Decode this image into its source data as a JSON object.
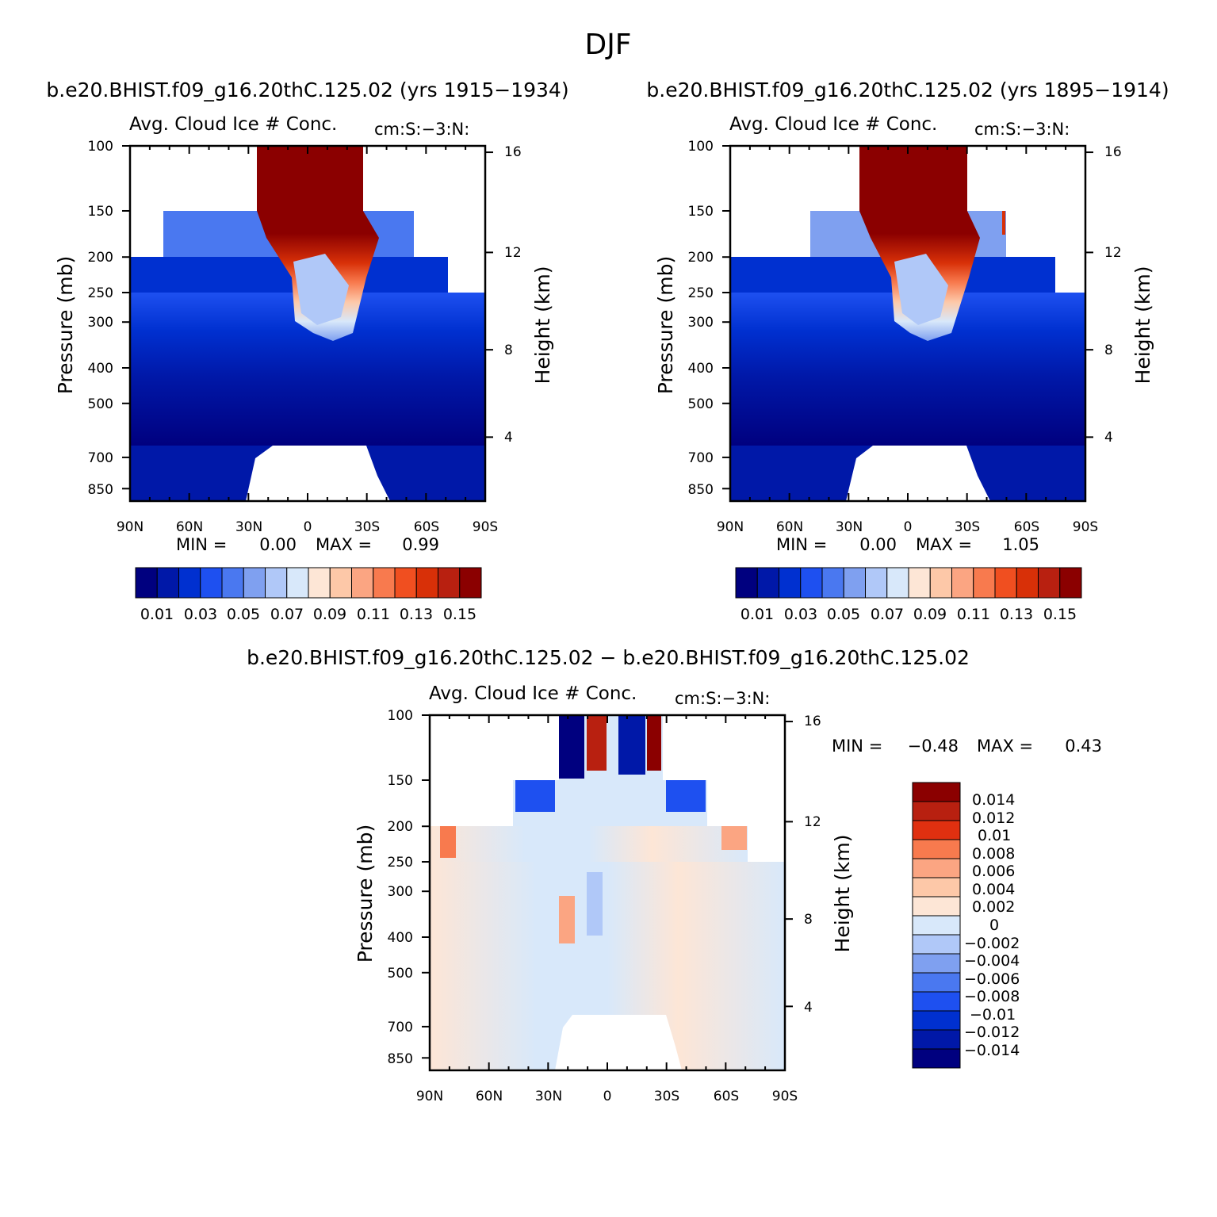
{
  "page_title": "DJF",
  "chart_data": [
    {
      "type": "heatmap",
      "subtitle": "b.e20.BHIST.f09_g16.20thC.125.02 (yrs 1915-1934)",
      "title_left": "Avg. Cloud Ice # Conc.",
      "title_right": "cm:S:-3:N:",
      "ylabel": "Pressure (mb)",
      "ylabel_right": "Height (km)",
      "x_ticks": [
        "90N",
        "60N",
        "30N",
        "0",
        "30S",
        "60S",
        "90S"
      ],
      "y_ticks": [
        "100",
        "150",
        "200",
        "250",
        "300",
        "400",
        "500",
        "700",
        "850"
      ],
      "y_ticks_right": [
        "16",
        "12",
        "8",
        "4"
      ],
      "min_label": "MIN =",
      "min_value": "0.00",
      "max_label": "MAX =",
      "max_value": "0.99",
      "colorbar_labels": [
        "0.01",
        "0.03",
        "0.05",
        "0.07",
        "0.09",
        "0.11",
        "0.13",
        "0.15"
      ]
    },
    {
      "type": "heatmap",
      "subtitle": "b.e20.BHIST.f09_g16.20thC.125.02 (yrs 1895-1914)",
      "title_left": "Avg. Cloud Ice # Conc.",
      "title_right": "cm:S:-3:N:",
      "ylabel": "Pressure (mb)",
      "ylabel_right": "Height (km)",
      "x_ticks": [
        "90N",
        "60N",
        "30N",
        "0",
        "30S",
        "60S",
        "90S"
      ],
      "y_ticks": [
        "100",
        "150",
        "200",
        "250",
        "300",
        "400",
        "500",
        "700",
        "850"
      ],
      "y_ticks_right": [
        "16",
        "12",
        "8",
        "4"
      ],
      "min_label": "MIN =",
      "min_value": "0.00",
      "max_label": "MAX =",
      "max_value": "1.05",
      "colorbar_labels": [
        "0.01",
        "0.03",
        "0.05",
        "0.07",
        "0.09",
        "0.11",
        "0.13",
        "0.15"
      ]
    },
    {
      "type": "heatmap",
      "subtitle": "b.e20.BHIST.f09_g16.20thC.125.02 - b.e20.BHIST.f09_g16.20thC.125.02",
      "title_left": "Avg. Cloud Ice # Conc.",
      "title_right": "cm:S:-3:N:",
      "ylabel": "Pressure (mb)",
      "ylabel_right": "Height (km)",
      "x_ticks": [
        "90N",
        "60N",
        "30N",
        "0",
        "30S",
        "60S",
        "90S"
      ],
      "y_ticks": [
        "100",
        "150",
        "200",
        "250",
        "300",
        "400",
        "500",
        "700",
        "850"
      ],
      "y_ticks_right": [
        "16",
        "12",
        "8",
        "4"
      ],
      "min_label": "MIN =",
      "min_value": "-0.48",
      "max_label": "MAX =",
      "max_value": "0.43",
      "colorbar_labels": [
        "0.014",
        "0.012",
        "0.01",
        "0.008",
        "0.006",
        "0.004",
        "0.002",
        "0",
        "-0.002",
        "-0.004",
        "-0.006",
        "-0.008",
        "-0.01",
        "-0.012",
        "-0.014"
      ]
    }
  ],
  "colors": {
    "seq": [
      "#00007f",
      "#0018a8",
      "#0030d0",
      "#1e50f0",
      "#4a78f0",
      "#7fa0f0",
      "#b0c8f8",
      "#d8e8fa",
      "#fde6d6",
      "#fdc8a8",
      "#fba582",
      "#f87a4e",
      "#f04f20",
      "#d83008",
      "#b82010",
      "#8b0000"
    ],
    "diff": [
      "#8b0000",
      "#b82010",
      "#e03010",
      "#f87a4e",
      "#fba582",
      "#fdc8a8",
      "#fde6d6",
      "#d8e8fa",
      "#b0c8f8",
      "#7fa0f0",
      "#4a78f0",
      "#1e50f0",
      "#0030d0",
      "#0018a8",
      "#00007f"
    ]
  }
}
